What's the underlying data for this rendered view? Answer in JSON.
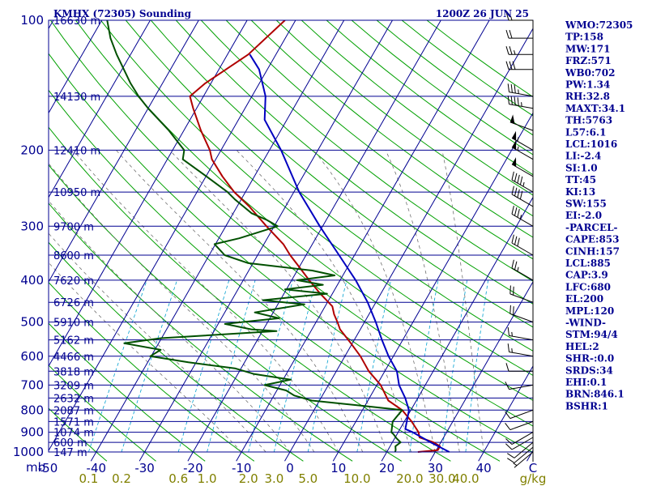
{
  "header": {
    "left": "KMHX (72305) Sounding",
    "right": "1200Z 26 JUN 25"
  },
  "colors": {
    "isobar": "#000090",
    "isotherm": "#000090",
    "dry_adiabat": "#00A000",
    "moist_adiabat": "#707070",
    "mixing_ratio": "#00A0D0",
    "temperature": "#B00000",
    "dewpoint": "#005000",
    "parcel": "#0000C0",
    "background": "#FFFFFF"
  },
  "axis": {
    "pressure_unit": "mb",
    "temp_unit": "C",
    "mixing_unit": "g/kg",
    "pressure_ticks": [
      "100",
      "200",
      "300",
      "400",
      "500",
      "600",
      "700",
      "800",
      "900",
      "1000"
    ],
    "temp_ticks": [
      "-50",
      "-40",
      "-30",
      "-20",
      "-10",
      "0",
      "10",
      "20",
      "30",
      "40"
    ],
    "mixing_ticks": [
      "0.1",
      "0.2",
      "0.6",
      "1.0",
      "2.0",
      "3.0",
      "5.0",
      "10.0",
      "20.0",
      "30.0",
      "40.0"
    ]
  },
  "heights": [
    {
      "p": 100,
      "label": "16630 m"
    },
    {
      "p": 150,
      "label": "14130 m"
    },
    {
      "p": 200,
      "label": "12410 m"
    },
    {
      "p": 250,
      "label": "10950 m"
    },
    {
      "p": 300,
      "label": "9700 m"
    },
    {
      "p": 350,
      "label": "8600 m"
    },
    {
      "p": 400,
      "label": "7620 m"
    },
    {
      "p": 450,
      "label": "6726 m"
    },
    {
      "p": 500,
      "label": "5910 m"
    },
    {
      "p": 550,
      "label": "5162 m"
    },
    {
      "p": 600,
      "label": "4466 m"
    },
    {
      "p": 650,
      "label": "3818 m"
    },
    {
      "p": 700,
      "label": "3209 m"
    },
    {
      "p": 750,
      "label": "2632 m"
    },
    {
      "p": 800,
      "label": "2087 m"
    },
    {
      "p": 850,
      "label": "1571 m"
    },
    {
      "p": 900,
      "label": "1074 m"
    },
    {
      "p": 950,
      "label": "600 m"
    },
    {
      "p": 1000,
      "label": "147 m"
    }
  ],
  "indices": [
    "WMO:72305",
    "TP:158",
    "MW:171",
    "FRZ:571",
    "WB0:702",
    "PW:1.34",
    "RH:32.8",
    "MAXT:34.1",
    "TH:5763",
    "L57:6.1",
    "LCL:1016",
    "LI:-2.4",
    "SI:1.0",
    "TT:45",
    "KI:13",
    "SW:155",
    "EI:-2.0",
    "-PARCEL-",
    "CAPE:853",
    "CINH:157",
    "LCL:885",
    "CAP:3.9",
    "LFC:680",
    "EL:200",
    "MPL:120",
    "-WIND-",
    "STM:94/4",
    "HEL:2",
    "SHR-:0.0",
    "SRDS:34",
    "EHI:0.1",
    "BRN:846.1",
    "BSHR:1"
  ],
  "chart_data": {
    "type": "line",
    "chart_kind": "skew-T log-P sounding",
    "y_scale": "log",
    "ylim": [
      1000,
      100
    ],
    "xlim": [
      -50,
      50
    ],
    "series": [
      {
        "key": "temperature",
        "points": [
          [
            1000,
            26.4
          ],
          [
            990,
            30.3
          ],
          [
            970,
            30.3
          ],
          [
            950,
            28.5
          ],
          [
            925,
            25.0
          ],
          [
            900,
            24.2
          ],
          [
            850,
            21.5
          ],
          [
            800,
            18.2
          ],
          [
            760,
            14.2
          ],
          [
            700,
            10.8
          ],
          [
            650,
            6.7
          ],
          [
            600,
            3.2
          ],
          [
            560,
            -0.3
          ],
          [
            520,
            -4.2
          ],
          [
            500,
            -5.6
          ],
          [
            480,
            -7.2
          ],
          [
            460,
            -8.5
          ],
          [
            430,
            -12.5
          ],
          [
            400,
            -16.4
          ],
          [
            370,
            -20.4
          ],
          [
            350,
            -23.3
          ],
          [
            330,
            -26.0
          ],
          [
            300,
            -31.6
          ],
          [
            270,
            -37.5
          ],
          [
            250,
            -42.3
          ],
          [
            230,
            -46.6
          ],
          [
            210,
            -50.8
          ],
          [
            200,
            -52.3
          ],
          [
            180,
            -56.5
          ],
          [
            160,
            -60.7
          ],
          [
            150,
            -62.8
          ],
          [
            140,
            -61.2
          ],
          [
            120,
            -55.7
          ],
          [
            100,
            -52.2
          ]
        ]
      },
      {
        "key": "dewpoint",
        "points": [
          [
            1000,
            21.7
          ],
          [
            990,
            21.6
          ],
          [
            970,
            21.1
          ],
          [
            950,
            21.7
          ],
          [
            930,
            20.4
          ],
          [
            910,
            19.3
          ],
          [
            900,
            18.6
          ],
          [
            850,
            17.6
          ],
          [
            800,
            18.2
          ],
          [
            780,
            8.7
          ],
          [
            760,
            -1.6
          ],
          [
            740,
            -5.8
          ],
          [
            720,
            -8.1
          ],
          [
            700,
            -13.2
          ],
          [
            680,
            -8.4
          ],
          [
            660,
            -16.6
          ],
          [
            640,
            -21.3
          ],
          [
            620,
            -31.6
          ],
          [
            600,
            -40.2
          ],
          [
            580,
            -38.8
          ],
          [
            560,
            -47.1
          ],
          [
            545,
            -40.1
          ],
          [
            525,
            -17.1
          ],
          [
            520,
            -22.5
          ],
          [
            505,
            -28.6
          ],
          [
            490,
            -18.1
          ],
          [
            475,
            -23.8
          ],
          [
            455,
            -14.5
          ],
          [
            445,
            -23.6
          ],
          [
            430,
            -11.1
          ],
          [
            420,
            -20.3
          ],
          [
            410,
            -13.0
          ],
          [
            400,
            -18.9
          ],
          [
            390,
            -11.7
          ],
          [
            380,
            -16.9
          ],
          [
            365,
            -31.1
          ],
          [
            350,
            -36.8
          ],
          [
            330,
            -40.2
          ],
          [
            320,
            -35.8
          ],
          [
            300,
            -29.3
          ],
          [
            290,
            -32.3
          ],
          [
            280,
            -36.2
          ],
          [
            260,
            -41.3
          ],
          [
            250,
            -43.7
          ],
          [
            230,
            -49.9
          ],
          [
            210,
            -56.8
          ],
          [
            200,
            -57.6
          ],
          [
            180,
            -63.1
          ],
          [
            160,
            -70.0
          ],
          [
            150,
            -73.4
          ],
          [
            140,
            -76.6
          ],
          [
            120,
            -82.9
          ],
          [
            110,
            -86.1
          ],
          [
            100,
            -88.9
          ]
        ]
      },
      {
        "key": "parcel",
        "points": [
          [
            1000,
            32.9
          ],
          [
            950,
            27.9
          ],
          [
            900,
            23.0
          ],
          [
            885,
            21.1
          ],
          [
            850,
            20.5
          ],
          [
            800,
            19.6
          ],
          [
            750,
            17.4
          ],
          [
            700,
            14.6
          ],
          [
            650,
            12.5
          ],
          [
            600,
            9.0
          ],
          [
            550,
            5.7
          ],
          [
            500,
            2.3
          ],
          [
            450,
            -1.7
          ],
          [
            400,
            -6.8
          ],
          [
            350,
            -13.2
          ],
          [
            300,
            -20.6
          ],
          [
            250,
            -28.9
          ],
          [
            200,
            -37.6
          ],
          [
            170,
            -44.6
          ],
          [
            150,
            -47.2
          ],
          [
            130,
            -51.7
          ],
          [
            120,
            -55.4
          ]
        ]
      }
    ],
    "wind_barbs": [
      {
        "p": 1000,
        "dir": 230,
        "spd": 5
      },
      {
        "p": 975,
        "dir": 230,
        "spd": 10
      },
      {
        "p": 950,
        "dir": 230,
        "spd": 10
      },
      {
        "p": 925,
        "dir": 240,
        "spd": 10
      },
      {
        "p": 900,
        "dir": 240,
        "spd": 10
      },
      {
        "p": 850,
        "dir": 250,
        "spd": 10
      },
      {
        "p": 800,
        "dir": 250,
        "spd": 10
      },
      {
        "p": 700,
        "dir": 260,
        "spd": 10
      },
      {
        "p": 650,
        "dir": 270,
        "spd": 10
      },
      {
        "p": 600,
        "dir": 280,
        "spd": 15
      },
      {
        "p": 550,
        "dir": 280,
        "spd": 15
      },
      {
        "p": 500,
        "dir": 290,
        "spd": 20
      },
      {
        "p": 450,
        "dir": 290,
        "spd": 20
      },
      {
        "p": 400,
        "dir": 300,
        "spd": 25
      },
      {
        "p": 350,
        "dir": 300,
        "spd": 30
      },
      {
        "p": 300,
        "dir": 300,
        "spd": 35
      },
      {
        "p": 270,
        "dir": 300,
        "spd": 40
      },
      {
        "p": 250,
        "dir": 300,
        "spd": 45
      },
      {
        "p": 230,
        "dir": 300,
        "spd": 50
      },
      {
        "p": 210,
        "dir": 300,
        "spd": 55
      },
      {
        "p": 200,
        "dir": 300,
        "spd": 55
      },
      {
        "p": 180,
        "dir": 290,
        "spd": 50
      },
      {
        "p": 160,
        "dir": 280,
        "spd": 45
      },
      {
        "p": 150,
        "dir": 280,
        "spd": 35
      },
      {
        "p": 130,
        "dir": 270,
        "spd": 30
      },
      {
        "p": 120,
        "dir": 270,
        "spd": 25
      },
      {
        "p": 110,
        "dir": 270,
        "spd": 20
      },
      {
        "p": 100,
        "dir": 270,
        "spd": 15
      }
    ],
    "grid": true,
    "legend": "none"
  }
}
